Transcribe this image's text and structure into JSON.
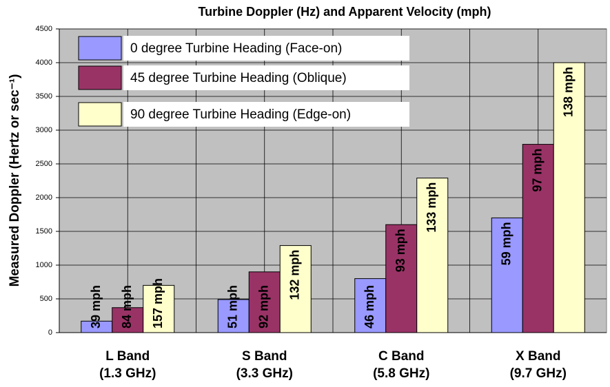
{
  "chart_data": {
    "type": "bar",
    "title": "Turbine Doppler (Hz) and Apparent Velocity (mph)",
    "ylabel": "Measured Doppler (Hertz or sec⁻¹)",
    "categories": [
      "L Band\n(1.3 GHz)",
      "S Band\n(3.3 GHz)",
      "C Band\n(5.8 GHz)",
      "X Band\n(9.7 GHz)"
    ],
    "series": [
      {
        "name": "0 degree Turbine Heading (Face-on)",
        "color": "#9999ff",
        "values": [
          170,
          490,
          800,
          1700
        ],
        "velocity_labels": [
          "39 mph",
          "51 mph",
          "46 mph",
          "59 mph"
        ]
      },
      {
        "name": "45 degree Turbine Heading (Oblique)",
        "color": "#993366",
        "values": [
          370,
          900,
          1600,
          2790
        ],
        "velocity_labels": [
          "84 mph",
          "92 mph",
          "93 mph",
          "97 mph"
        ]
      },
      {
        "name": "90 degree Turbine Heading (Edge-on)",
        "color": "#ffffcc",
        "values": [
          700,
          1290,
          2290,
          4000
        ],
        "velocity_labels": [
          "157 mph",
          "132 mph",
          "133 mph",
          "138 mph"
        ]
      }
    ],
    "ylim": [
      0,
      4500
    ],
    "yticks": [
      0,
      500,
      1000,
      1500,
      2000,
      2500,
      3000,
      3500,
      4000,
      4500
    ],
    "grid": true,
    "legend": "upper left"
  }
}
